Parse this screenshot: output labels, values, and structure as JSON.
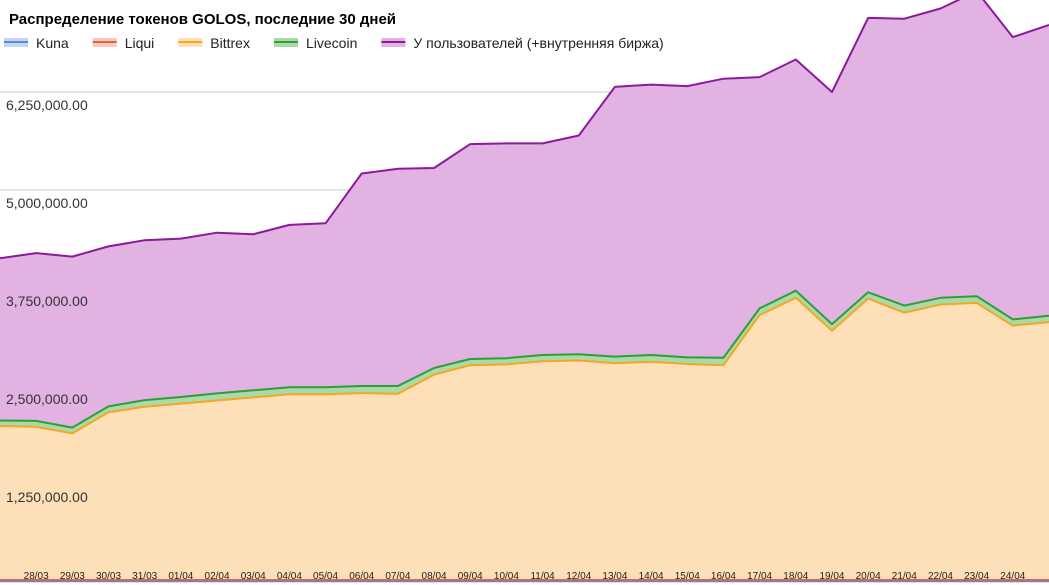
{
  "chart_data": {
    "type": "area",
    "stacked": true,
    "title": "Распределение токенов GOLOS, последние 30 дней",
    "xlabel": "",
    "ylabel": "",
    "ylim": [
      0,
      7500000
    ],
    "yticks": [
      1250000,
      2500000,
      3750000,
      5000000,
      6250000
    ],
    "ytick_labels": [
      "1,250,000.00",
      "2,500,000.00",
      "3,750,000.00",
      "5,000,000.00",
      "6,250,000.00"
    ],
    "grid": true,
    "legend_position": "top",
    "categories": [
      "",
      "28/03",
      "29/03",
      "30/03",
      "31/03",
      "01/04",
      "02/04",
      "03/04",
      "04/04",
      "05/04",
      "06/04",
      "07/04",
      "08/04",
      "09/04",
      "10/04",
      "11/04",
      "12/04",
      "13/04",
      "14/04",
      "15/04",
      "16/04",
      "17/04",
      "18/04",
      "19/04",
      "20/04",
      "21/04",
      "22/04",
      "23/04",
      "24/04",
      ""
    ],
    "series": [
      {
        "name": "Kuna",
        "color": "#5b8ad6",
        "fill": "#c6d5f0",
        "values": [
          10000,
          10000,
          10000,
          10000,
          10000,
          10000,
          10000,
          10000,
          10000,
          10000,
          10000,
          10000,
          10000,
          10000,
          10000,
          10000,
          10000,
          10000,
          10000,
          10000,
          10000,
          10000,
          10000,
          10000,
          10000,
          10000,
          10000,
          10000,
          10000,
          10000
        ]
      },
      {
        "name": "Liqui",
        "color": "#e0644c",
        "fill": "#f6c9bf",
        "values": [
          15000,
          15000,
          15000,
          15000,
          15000,
          15000,
          15000,
          15000,
          15000,
          15000,
          15000,
          15000,
          15000,
          15000,
          15000,
          15000,
          15000,
          15000,
          15000,
          15000,
          15000,
          15000,
          15000,
          15000,
          15000,
          15000,
          15000,
          15000,
          15000,
          15000
        ]
      },
      {
        "name": "Bittrex",
        "color": "#f5a623",
        "fill": "#fde0b8",
        "values": [
          1965000,
          1955000,
          1870000,
          2140000,
          2210000,
          2250000,
          2290000,
          2330000,
          2370000,
          2370000,
          2385000,
          2375000,
          2620000,
          2740000,
          2750000,
          2790000,
          2800000,
          2765000,
          2785000,
          2755000,
          2740000,
          3380000,
          3600000,
          3180000,
          3590000,
          3410000,
          3515000,
          3535000,
          3245000,
          3290000
        ]
      },
      {
        "name": "Livecoin",
        "color": "#2e9e3a",
        "fill": "#a9dba9",
        "values": [
          70000,
          75000,
          75000,
          75000,
          85000,
          85000,
          90000,
          90000,
          90000,
          90000,
          90000,
          100000,
          85000,
          80000,
          80000,
          80000,
          80000,
          85000,
          85000,
          85000,
          95000,
          85000,
          90000,
          85000,
          80000,
          90000,
          85000,
          85000,
          80000,
          80000
        ]
      },
      {
        "name": "У пользователей (+внутренняя биржа)",
        "color": "#8b1a9c",
        "fill": "#e2b2e3",
        "values": [
          2070000,
          2140000,
          2180000,
          2040000,
          2040000,
          2020000,
          2050000,
          1990000,
          2070000,
          2090000,
          2710000,
          2770000,
          2550000,
          2740000,
          2740000,
          2700000,
          2790000,
          3440000,
          3450000,
          3460000,
          3560000,
          2950000,
          2950000,
          2960000,
          3500000,
          3660000,
          3690000,
          3890000,
          3600000,
          3710000
        ]
      }
    ]
  }
}
